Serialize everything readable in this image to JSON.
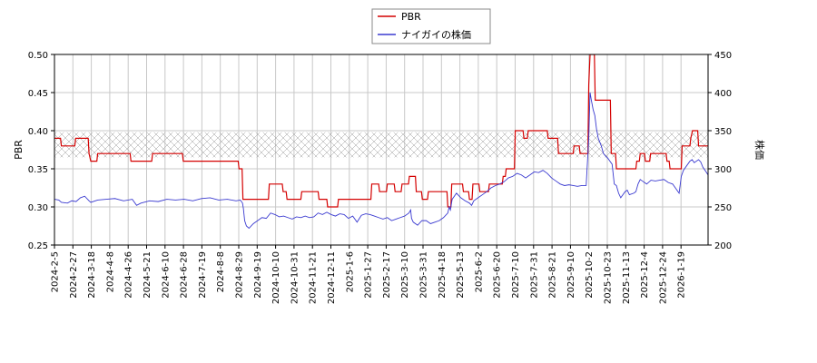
{
  "chart_data": {
    "type": "line",
    "legend": {
      "placement": "top-center",
      "entries": [
        "PBR",
        "ナイガイの株価"
      ]
    },
    "colors": {
      "pbr": "#d40000",
      "price": "#3a3ad0",
      "band": "#bdbdbd",
      "grid": "#c8c8c8"
    },
    "y_left": {
      "label": "PBR",
      "lim": [
        0.25,
        0.5
      ],
      "ticks": [
        "0.25",
        "0.30",
        "0.35",
        "0.40",
        "0.45",
        "0.50"
      ]
    },
    "y_right": {
      "label": "株価",
      "lim": [
        200,
        450
      ],
      "ticks": [
        "200",
        "250",
        "300",
        "350",
        "400",
        "450"
      ]
    },
    "x_ticks": [
      "2024-2-5",
      "2024-2-27",
      "2024-3-18",
      "2024-4-8",
      "2024-4-26",
      "2024-5-21",
      "2024-6-10",
      "2024-6-28",
      "2024-7-19",
      "2024-8-8",
      "2024-8-29",
      "2024-9-19",
      "2024-10-10",
      "2024-10-31",
      "2024-11-21",
      "2024-12-11",
      "2025-1-6",
      "2025-1-27",
      "2025-2-17",
      "2025-3-10",
      "2025-3-31",
      "2025-4-18",
      "2025-5-13",
      "2025-6-2",
      "2025-6-20",
      "2025-7-10",
      "2025-7-31",
      "2025-8-21",
      "2025-9-10",
      "2025-10-2",
      "2025-10-23",
      "2025-11-13",
      "2025-12-4",
      "2025-12-24",
      "2026-1-19"
    ],
    "band": {
      "axis": "right",
      "range": [
        315,
        348
      ]
    },
    "grid": true,
    "series": [
      {
        "name": "PBR",
        "axis": "left",
        "points": [
          [
            0,
            0.39
          ],
          [
            1.4,
            0.39
          ],
          [
            1.6,
            0.38
          ],
          [
            4.7,
            0.38
          ],
          [
            4.9,
            0.39
          ],
          [
            7.8,
            0.39
          ],
          [
            8.0,
            0.37
          ],
          [
            8.4,
            0.36
          ],
          [
            9.8,
            0.36
          ],
          [
            10.0,
            0.37
          ],
          [
            12,
            0.37
          ],
          [
            17.5,
            0.37
          ],
          [
            17.7,
            0.36
          ],
          [
            22.5,
            0.36
          ],
          [
            22.7,
            0.37
          ],
          [
            29.6,
            0.37
          ],
          [
            29.8,
            0.36
          ],
          [
            42.5,
            0.36
          ],
          [
            42.7,
            0.35
          ],
          [
            43.4,
            0.35
          ],
          [
            43.6,
            0.31
          ],
          [
            49.5,
            0.31
          ],
          [
            49.7,
            0.33
          ],
          [
            52.7,
            0.33
          ],
          [
            52.9,
            0.32
          ],
          [
            53.6,
            0.32
          ],
          [
            53.8,
            0.31
          ],
          [
            57,
            0.31
          ],
          [
            57.2,
            0.32
          ],
          [
            61,
            0.32
          ],
          [
            61.2,
            0.31
          ],
          [
            63,
            0.31
          ],
          [
            63.2,
            0.3
          ],
          [
            65.5,
            0.3
          ],
          [
            65.7,
            0.31
          ],
          [
            73.2,
            0.31
          ],
          [
            73.4,
            0.33
          ],
          [
            75,
            0.33
          ],
          [
            75.2,
            0.32
          ],
          [
            76.8,
            0.32
          ],
          [
            77,
            0.33
          ],
          [
            78.6,
            0.33
          ],
          [
            78.8,
            0.32
          ],
          [
            80.2,
            0.32
          ],
          [
            80.4,
            0.33
          ],
          [
            81.9,
            0.33
          ],
          [
            82.1,
            0.34
          ],
          [
            83.5,
            0.34
          ],
          [
            83.7,
            0.32
          ],
          [
            84.9,
            0.32
          ],
          [
            85.1,
            0.31
          ],
          [
            86.3,
            0.31
          ],
          [
            86.5,
            0.32
          ],
          [
            90.8,
            0.32
          ],
          [
            91.0,
            0.3
          ],
          [
            91.7,
            0.3
          ],
          [
            91.9,
            0.33
          ],
          [
            94.4,
            0.33
          ],
          [
            94.6,
            0.32
          ],
          [
            95.8,
            0.32
          ],
          [
            96.0,
            0.31
          ],
          [
            96.6,
            0.31
          ],
          [
            96.8,
            0.33
          ],
          [
            98.2,
            0.33
          ],
          [
            98.4,
            0.32
          ],
          [
            100.4,
            0.32
          ],
          [
            100.6,
            0.33
          ],
          [
            103.6,
            0.33
          ],
          [
            103.8,
            0.34
          ],
          [
            104.3,
            0.34
          ],
          [
            104.5,
            0.35
          ],
          [
            106.4,
            0.35
          ],
          [
            106.6,
            0.4
          ],
          [
            108.4,
            0.4
          ],
          [
            108.6,
            0.39
          ],
          [
            109.4,
            0.39
          ],
          [
            109.6,
            0.4
          ],
          [
            114.0,
            0.4
          ],
          [
            114.2,
            0.39
          ],
          [
            116.4,
            0.39
          ],
          [
            116.6,
            0.37
          ],
          [
            120.0,
            0.37
          ],
          [
            120.2,
            0.38
          ],
          [
            121.4,
            0.38
          ],
          [
            121.6,
            0.37
          ],
          [
            123.4,
            0.37
          ],
          [
            123.6,
            0.46
          ],
          [
            123.9,
            0.5
          ],
          [
            124.9,
            0.5
          ],
          [
            125.1,
            0.44
          ],
          [
            128.6,
            0.44
          ],
          [
            128.8,
            0.37
          ],
          [
            129.8,
            0.37
          ],
          [
            130.0,
            0.35
          ],
          [
            134.5,
            0.35
          ],
          [
            134.7,
            0.36
          ],
          [
            135.3,
            0.36
          ],
          [
            135.5,
            0.37
          ],
          [
            136.5,
            0.37
          ],
          [
            136.7,
            0.36
          ],
          [
            137.7,
            0.36
          ],
          [
            137.9,
            0.37
          ],
          [
            141.5,
            0.37
          ],
          [
            141.7,
            0.36
          ],
          [
            142.2,
            0.36
          ],
          [
            142.4,
            0.35
          ],
          [
            145.0,
            0.35
          ],
          [
            145.2,
            0.38
          ],
          [
            147.0,
            0.38
          ],
          [
            147.2,
            0.39
          ],
          [
            147.6,
            0.4
          ],
          [
            148.8,
            0.4
          ],
          [
            149.0,
            0.38
          ],
          [
            151.2,
            0.38
          ]
        ]
      },
      {
        "name": "ナイガイの株価",
        "axis": "right",
        "points": [
          [
            0,
            260
          ],
          [
            1,
            259
          ],
          [
            1.6,
            256
          ],
          [
            3,
            255
          ],
          [
            4,
            258
          ],
          [
            5,
            257
          ],
          [
            6,
            262
          ],
          [
            7,
            264
          ],
          [
            8,
            258
          ],
          [
            8.4,
            256
          ],
          [
            10,
            259
          ],
          [
            12,
            260
          ],
          [
            14,
            261
          ],
          [
            16,
            258
          ],
          [
            18,
            260
          ],
          [
            19,
            252
          ],
          [
            20,
            255
          ],
          [
            22,
            258
          ],
          [
            24,
            257
          ],
          [
            26,
            260
          ],
          [
            28,
            259
          ],
          [
            30,
            260
          ],
          [
            32,
            258
          ],
          [
            34,
            261
          ],
          [
            36,
            262
          ],
          [
            38,
            259
          ],
          [
            40,
            260
          ],
          [
            42,
            258
          ],
          [
            43,
            259
          ],
          [
            43.5,
            255
          ],
          [
            43.7,
            248
          ],
          [
            44,
            232
          ],
          [
            44.4,
            225
          ],
          [
            45,
            222
          ],
          [
            46,
            228
          ],
          [
            47,
            232
          ],
          [
            48,
            236
          ],
          [
            49,
            235
          ],
          [
            50,
            242
          ],
          [
            51,
            240
          ],
          [
            52,
            237
          ],
          [
            53,
            238
          ],
          [
            54,
            236
          ],
          [
            55,
            234
          ],
          [
            56,
            237
          ],
          [
            57,
            236
          ],
          [
            58,
            238
          ],
          [
            59,
            236
          ],
          [
            60,
            237
          ],
          [
            61,
            242
          ],
          [
            62,
            240
          ],
          [
            63,
            243
          ],
          [
            64,
            240
          ],
          [
            65,
            238
          ],
          [
            66,
            241
          ],
          [
            67,
            240
          ],
          [
            68,
            235
          ],
          [
            69,
            238
          ],
          [
            70,
            230
          ],
          [
            71,
            239
          ],
          [
            72,
            241
          ],
          [
            73,
            240
          ],
          [
            74,
            238
          ],
          [
            75,
            236
          ],
          [
            76,
            234
          ],
          [
            77,
            236
          ],
          [
            78,
            232
          ],
          [
            79,
            234
          ],
          [
            80,
            236
          ],
          [
            81,
            238
          ],
          [
            82,
            242
          ],
          [
            82.4,
            246
          ],
          [
            82.6,
            235
          ],
          [
            83,
            230
          ],
          [
            84,
            226
          ],
          [
            85,
            232
          ],
          [
            86,
            232
          ],
          [
            87,
            228
          ],
          [
            88,
            230
          ],
          [
            89,
            232
          ],
          [
            90,
            236
          ],
          [
            91,
            242
          ],
          [
            91.3,
            250
          ],
          [
            91.6,
            246
          ],
          [
            92,
            260
          ],
          [
            93,
            268
          ],
          [
            94,
            262
          ],
          [
            95,
            258
          ],
          [
            96,
            255
          ],
          [
            96.5,
            252
          ],
          [
            97,
            258
          ],
          [
            98,
            262
          ],
          [
            99,
            266
          ],
          [
            100,
            270
          ],
          [
            101,
            275
          ],
          [
            102,
            278
          ],
          [
            103,
            280
          ],
          [
            104,
            283
          ],
          [
            105,
            288
          ],
          [
            106,
            290
          ],
          [
            107,
            294
          ],
          [
            108,
            292
          ],
          [
            109,
            288
          ],
          [
            110,
            292
          ],
          [
            111,
            296
          ],
          [
            112,
            295
          ],
          [
            113,
            298
          ],
          [
            114,
            294
          ],
          [
            115,
            288
          ],
          [
            116,
            284
          ],
          [
            117,
            280
          ],
          [
            118,
            278
          ],
          [
            119,
            279
          ],
          [
            120,
            278
          ],
          [
            121,
            277
          ],
          [
            122,
            278
          ],
          [
            123,
            278
          ],
          [
            123.6,
            340
          ],
          [
            123.9,
            400
          ],
          [
            124.2,
            390
          ],
          [
            124.6,
            378
          ],
          [
            125,
            370
          ],
          [
            125.4,
            352
          ],
          [
            125.8,
            340
          ],
          [
            126.5,
            330
          ],
          [
            127,
            320
          ],
          [
            127.6,
            316
          ],
          [
            128,
            314
          ],
          [
            128.5,
            310
          ],
          [
            129,
            306
          ],
          [
            129.5,
            280
          ],
          [
            130,
            278
          ],
          [
            130.5,
            268
          ],
          [
            131,
            262
          ],
          [
            132,
            270
          ],
          [
            132.5,
            272
          ],
          [
            133,
            266
          ],
          [
            134,
            268
          ],
          [
            134.5,
            270
          ],
          [
            135,
            280
          ],
          [
            135.5,
            286
          ],
          [
            136,
            284
          ],
          [
            136.5,
            282
          ],
          [
            137,
            280
          ],
          [
            138,
            285
          ],
          [
            139,
            284
          ],
          [
            140,
            285
          ],
          [
            141,
            286
          ],
          [
            142,
            282
          ],
          [
            143,
            280
          ],
          [
            144,
            272
          ],
          [
            144.5,
            268
          ],
          [
            145,
            290
          ],
          [
            145.5,
            298
          ],
          [
            146,
            302
          ],
          [
            147,
            310
          ],
          [
            147.5,
            312
          ],
          [
            148,
            308
          ],
          [
            149,
            312
          ],
          [
            149.5,
            309
          ],
          [
            150,
            302
          ],
          [
            150.5,
            298
          ],
          [
            151.2,
            292
          ]
        ]
      }
    ]
  }
}
